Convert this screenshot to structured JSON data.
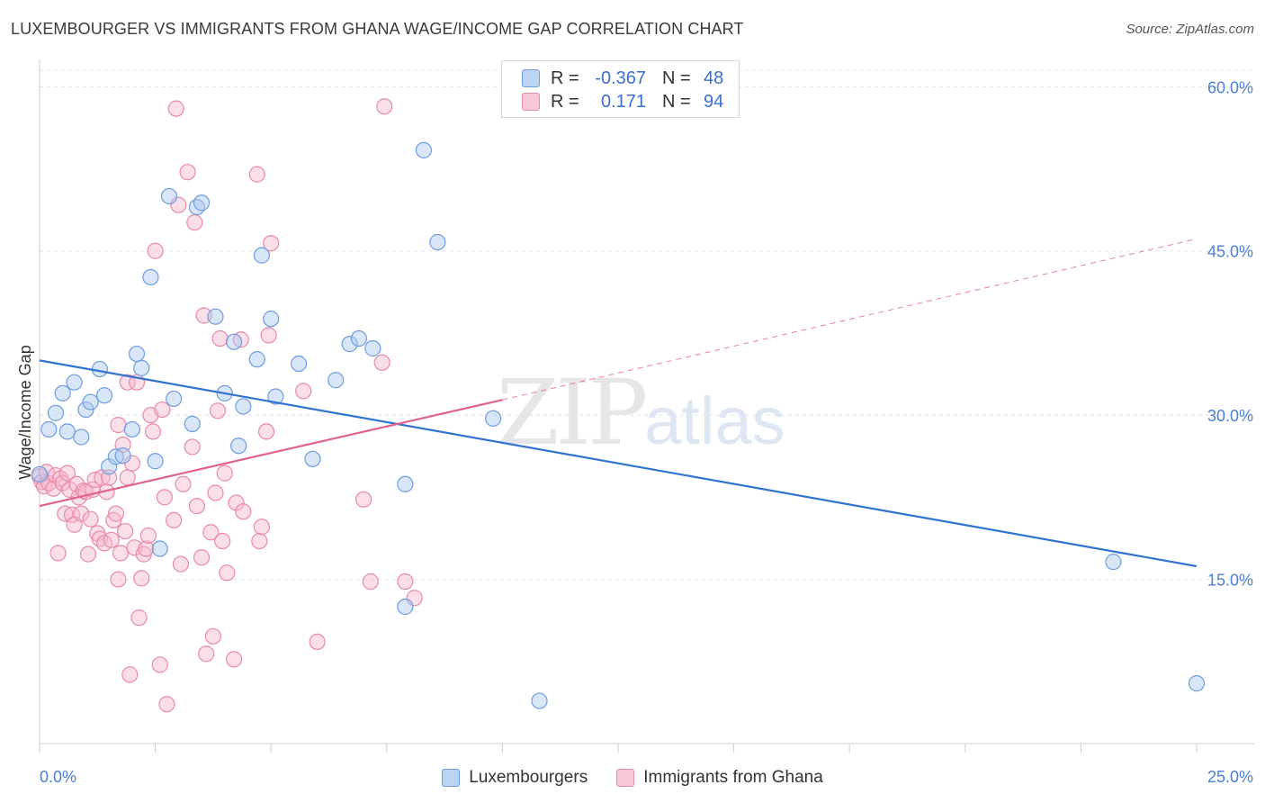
{
  "title": "LUXEMBOURGER VS IMMIGRANTS FROM GHANA WAGE/INCOME GAP CORRELATION CHART",
  "source": "Source: ZipAtlas.com",
  "watermark": {
    "zip": "ZIP",
    "atlas": "atlas"
  },
  "colors": {
    "blue_fill": "#a9c8f0",
    "blue_stroke": "#6d9ee0",
    "blue_line": "#2f74d0",
    "pink_fill": "#f6b9cc",
    "pink_stroke": "#e88aa8",
    "pink_line": "#e0628d",
    "grid": "#e4e4e4",
    "tick_text": "#4a7fd4"
  },
  "legend": {
    "rows": [
      {
        "r_label": "R =",
        "r_value": "-0.367",
        "n_label": "N =",
        "n_value": "48"
      },
      {
        "r_label": "R =",
        "r_value": "0.171",
        "n_label": "N =",
        "n_value": "94"
      }
    ]
  },
  "bottom_legend": [
    "Luxembourgers",
    "Immigrants from Ghana"
  ],
  "chart_data": {
    "type": "scatter",
    "title": "LUXEMBOURGER VS IMMIGRANTS FROM GHANA WAGE/INCOME GAP CORRELATION CHART",
    "xlabel": "",
    "ylabel": "Wage/Income Gap",
    "xlim": [
      0,
      25
    ],
    "ylim": [
      0,
      62
    ],
    "x_tick_labels": [
      "0.0%",
      "25.0%"
    ],
    "y_ticks": [
      15,
      30,
      45,
      60
    ],
    "y_tick_labels": [
      "15.0%",
      "30.0%",
      "45.0%",
      "60.0%"
    ],
    "grid": true,
    "series": [
      {
        "name": "Luxembourgers",
        "r": -0.367,
        "n": 48,
        "trend": {
          "x": [
            0,
            25
          ],
          "y": [
            35.0,
            16.2
          ],
          "dashed_extension": false
        },
        "points": [
          [
            0.0,
            24.6
          ],
          [
            0.2,
            28.7
          ],
          [
            0.35,
            30.2
          ],
          [
            0.5,
            32.0
          ],
          [
            0.6,
            28.5
          ],
          [
            0.75,
            33.0
          ],
          [
            0.9,
            28.0
          ],
          [
            1.0,
            30.5
          ],
          [
            1.1,
            31.2
          ],
          [
            1.3,
            34.2
          ],
          [
            1.4,
            31.8
          ],
          [
            1.5,
            25.3
          ],
          [
            1.65,
            26.2
          ],
          [
            1.8,
            26.3
          ],
          [
            2.0,
            28.7
          ],
          [
            2.1,
            35.6
          ],
          [
            2.2,
            34.3
          ],
          [
            2.4,
            42.6
          ],
          [
            2.5,
            25.8
          ],
          [
            2.6,
            17.8
          ],
          [
            2.8,
            50.0
          ],
          [
            2.9,
            31.5
          ],
          [
            3.3,
            29.2
          ],
          [
            3.4,
            49.0
          ],
          [
            3.5,
            49.4
          ],
          [
            3.8,
            39.0
          ],
          [
            4.0,
            32.0
          ],
          [
            4.2,
            36.7
          ],
          [
            4.3,
            27.2
          ],
          [
            4.4,
            30.8
          ],
          [
            4.7,
            35.1
          ],
          [
            4.8,
            44.6
          ],
          [
            5.0,
            38.8
          ],
          [
            5.1,
            31.7
          ],
          [
            5.6,
            34.7
          ],
          [
            5.9,
            26.0
          ],
          [
            6.4,
            33.2
          ],
          [
            6.7,
            36.5
          ],
          [
            6.9,
            37.0
          ],
          [
            7.2,
            36.1
          ],
          [
            7.9,
            23.7
          ],
          [
            7.9,
            12.5
          ],
          [
            8.3,
            54.2
          ],
          [
            8.6,
            45.8
          ],
          [
            9.8,
            29.7
          ],
          [
            10.8,
            3.9
          ],
          [
            23.2,
            16.6
          ],
          [
            25.0,
            5.5
          ]
        ]
      },
      {
        "name": "Immigrants from Ghana",
        "r": 0.171,
        "n": 94,
        "trend": {
          "x": [
            0,
            10
          ],
          "y": [
            21.7,
            31.4
          ],
          "dashed_x": [
            10,
            25
          ],
          "dashed_y": [
            31.4,
            46.1
          ]
        },
        "points": [
          [
            0.0,
            24.4
          ],
          [
            0.05,
            23.9
          ],
          [
            0.1,
            23.5
          ],
          [
            0.15,
            24.8
          ],
          [
            0.2,
            23.8
          ],
          [
            0.3,
            23.3
          ],
          [
            0.35,
            24.5
          ],
          [
            0.4,
            17.4
          ],
          [
            0.45,
            24.2
          ],
          [
            0.5,
            23.8
          ],
          [
            0.55,
            21.0
          ],
          [
            0.6,
            24.7
          ],
          [
            0.65,
            23.2
          ],
          [
            0.7,
            20.9
          ],
          [
            0.75,
            20.0
          ],
          [
            0.8,
            23.7
          ],
          [
            0.85,
            22.5
          ],
          [
            0.9,
            21.0
          ],
          [
            0.95,
            23.1
          ],
          [
            1.0,
            23.0
          ],
          [
            1.05,
            17.3
          ],
          [
            1.1,
            20.5
          ],
          [
            1.15,
            23.2
          ],
          [
            1.2,
            24.1
          ],
          [
            1.25,
            19.2
          ],
          [
            1.3,
            18.7
          ],
          [
            1.35,
            24.3
          ],
          [
            1.4,
            18.3
          ],
          [
            1.45,
            23.0
          ],
          [
            1.5,
            24.3
          ],
          [
            1.55,
            18.6
          ],
          [
            1.6,
            20.4
          ],
          [
            1.65,
            21.0
          ],
          [
            1.7,
            29.1
          ],
          [
            1.7,
            15.0
          ],
          [
            1.75,
            17.4
          ],
          [
            1.8,
            27.3
          ],
          [
            1.85,
            19.4
          ],
          [
            1.9,
            33.0
          ],
          [
            1.9,
            24.3
          ],
          [
            1.95,
            6.3
          ],
          [
            2.0,
            25.6
          ],
          [
            2.05,
            17.9
          ],
          [
            2.1,
            33.0
          ],
          [
            2.15,
            11.5
          ],
          [
            2.2,
            15.1
          ],
          [
            2.25,
            17.3
          ],
          [
            2.3,
            17.8
          ],
          [
            2.35,
            19.0
          ],
          [
            2.4,
            30.0
          ],
          [
            2.45,
            28.5
          ],
          [
            2.5,
            45.0
          ],
          [
            2.6,
            7.2
          ],
          [
            2.65,
            30.5
          ],
          [
            2.7,
            22.5
          ],
          [
            2.75,
            3.6
          ],
          [
            2.9,
            20.4
          ],
          [
            2.95,
            58.0
          ],
          [
            3.0,
            49.2
          ],
          [
            3.05,
            16.4
          ],
          [
            3.1,
            23.7
          ],
          [
            3.2,
            52.2
          ],
          [
            3.3,
            27.1
          ],
          [
            3.35,
            47.6
          ],
          [
            3.4,
            21.7
          ],
          [
            3.5,
            17.0
          ],
          [
            3.55,
            39.1
          ],
          [
            3.6,
            8.2
          ],
          [
            3.7,
            19.3
          ],
          [
            3.75,
            9.8
          ],
          [
            3.8,
            22.9
          ],
          [
            3.85,
            30.4
          ],
          [
            3.9,
            37.0
          ],
          [
            3.95,
            18.5
          ],
          [
            4.0,
            24.7
          ],
          [
            4.05,
            15.6
          ],
          [
            4.2,
            7.7
          ],
          [
            4.25,
            22.0
          ],
          [
            4.35,
            36.9
          ],
          [
            4.4,
            21.2
          ],
          [
            4.7,
            52.0
          ],
          [
            4.75,
            18.5
          ],
          [
            4.8,
            19.8
          ],
          [
            4.9,
            28.5
          ],
          [
            4.95,
            37.3
          ],
          [
            5.0,
            45.7
          ],
          [
            5.7,
            32.2
          ],
          [
            6.0,
            9.3
          ],
          [
            7.0,
            22.3
          ],
          [
            7.15,
            14.8
          ],
          [
            7.4,
            34.8
          ],
          [
            7.45,
            58.2
          ],
          [
            7.9,
            14.8
          ],
          [
            8.1,
            13.3
          ]
        ]
      }
    ]
  }
}
